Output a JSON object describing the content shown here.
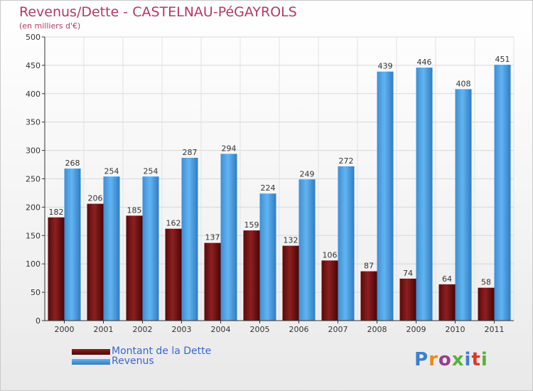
{
  "title": "Revenus/Dette - CASTELNAU-PéGAYROLS",
  "subtitle": "(en milliers d'€)",
  "colors": {
    "title": "#b03a64",
    "dette": "#7a1414",
    "revenus": "#4ca3e6",
    "legend_text": "#3a66d4"
  },
  "chart_data": {
    "type": "bar",
    "title": "Revenus/Dette - CASTELNAU-PéGAYROLS",
    "ylabel": "(en milliers d'€)",
    "ylim": [
      0,
      500
    ],
    "yticks": [
      0,
      50,
      100,
      150,
      200,
      250,
      300,
      350,
      400,
      450,
      500
    ],
    "grid": true,
    "legend_position": "bottom-left",
    "categories": [
      "2000",
      "2001",
      "2002",
      "2003",
      "2004",
      "2005",
      "2006",
      "2007",
      "2008",
      "2009",
      "2010",
      "2011"
    ],
    "series": [
      {
        "name": "Montant de la Dette",
        "color": "#7a1414",
        "values": [
          182,
          206,
          185,
          162,
          137,
          159,
          132,
          106,
          87,
          74,
          64,
          58
        ]
      },
      {
        "name": "Revenus",
        "color": "#4ca3e6",
        "values": [
          268,
          254,
          254,
          287,
          294,
          224,
          249,
          272,
          439,
          446,
          408,
          451
        ]
      }
    ]
  },
  "logo": {
    "text": "Proxiti",
    "colors": [
      "#3b7fd1",
      "#e88a1a",
      "#9c3c8c",
      "#58b23c",
      "#3b7fd1",
      "#d83a2a",
      "#58b23c"
    ]
  }
}
